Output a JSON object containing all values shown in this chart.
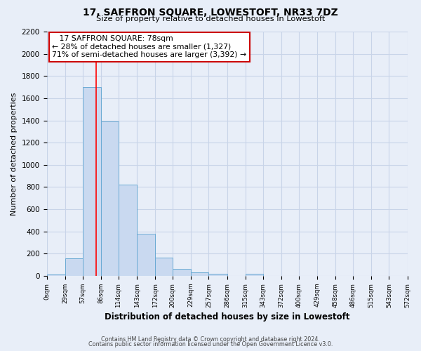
{
  "title": "17, SAFFRON SQUARE, LOWESTOFT, NR33 7DZ",
  "subtitle": "Size of property relative to detached houses in Lowestoft",
  "xlabel": "Distribution of detached houses by size in Lowestoft",
  "ylabel": "Number of detached properties",
  "bar_edges": [
    0,
    29,
    57,
    86,
    114,
    143,
    172,
    200,
    229,
    257,
    286,
    315,
    343,
    372,
    400,
    429,
    458,
    486,
    515,
    543,
    572
  ],
  "bar_heights": [
    10,
    155,
    1700,
    1390,
    820,
    380,
    165,
    65,
    30,
    20,
    0,
    20,
    0,
    0,
    0,
    0,
    0,
    0,
    0,
    0
  ],
  "bar_color": "#c9d9f0",
  "bar_edge_color": "#6aaad4",
  "property_line_x": 78,
  "property_line_color": "red",
  "ylim": [
    0,
    2200
  ],
  "yticks": [
    0,
    200,
    400,
    600,
    800,
    1000,
    1200,
    1400,
    1600,
    1800,
    2000,
    2200
  ],
  "xtick_labels": [
    "0sqm",
    "29sqm",
    "57sqm",
    "86sqm",
    "114sqm",
    "143sqm",
    "172sqm",
    "200sqm",
    "229sqm",
    "257sqm",
    "286sqm",
    "315sqm",
    "343sqm",
    "372sqm",
    "400sqm",
    "429sqm",
    "458sqm",
    "486sqm",
    "515sqm",
    "543sqm",
    "572sqm"
  ],
  "annotation_title": "17 SAFFRON SQUARE: 78sqm",
  "annotation_line1": "← 28% of detached houses are smaller (1,327)",
  "annotation_line2": "71% of semi-detached houses are larger (3,392) →",
  "annotation_box_color": "#ffffff",
  "annotation_box_edge": "#cc0000",
  "footer1": "Contains HM Land Registry data © Crown copyright and database right 2024.",
  "footer2": "Contains public sector information licensed under the Open Government Licence v3.0.",
  "grid_color": "#c8d4e8",
  "bg_color": "#e8eef8"
}
